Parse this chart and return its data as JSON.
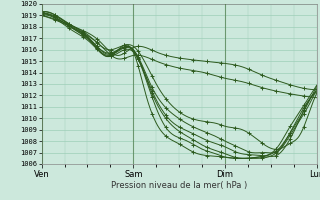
{
  "xlabel": "Pression niveau de la mer( hPa )",
  "bg_color": "#cce8dc",
  "grid_color": "#9ecfb8",
  "line_color": "#2d5a1e",
  "ylim": [
    1006,
    1020
  ],
  "yticks": [
    1006,
    1007,
    1008,
    1009,
    1010,
    1011,
    1012,
    1013,
    1014,
    1015,
    1016,
    1017,
    1018,
    1019,
    1020
  ],
  "day_labels": [
    "Ven",
    "Sam",
    "Dim",
    "Lun"
  ],
  "day_positions": [
    0,
    96,
    192,
    288
  ],
  "total_steps": 288,
  "lines": [
    {
      "x": [
        0,
        20,
        40,
        60,
        80,
        96,
        120,
        150,
        170,
        192,
        210,
        230,
        250,
        270,
        288
      ],
      "y": [
        1019.0,
        1018.5,
        1017.8,
        1016.8,
        1015.5,
        1016.2,
        1015.8,
        1015.2,
        1015.0,
        1014.8,
        1014.5,
        1013.8,
        1013.2,
        1012.7,
        1012.5
      ]
    },
    {
      "x": [
        0,
        20,
        40,
        60,
        80,
        96,
        120,
        150,
        170,
        192,
        210,
        230,
        250,
        270,
        288
      ],
      "y": [
        1019.0,
        1018.4,
        1017.6,
        1016.5,
        1015.2,
        1015.5,
        1015.0,
        1014.3,
        1014.0,
        1013.5,
        1013.2,
        1012.7,
        1012.3,
        1012.0,
        1011.8
      ]
    },
    {
      "x": [
        0,
        15,
        30,
        50,
        70,
        96,
        120,
        145,
        165,
        185,
        192,
        210,
        228,
        248,
        260,
        270,
        280,
        288
      ],
      "y": [
        1019.2,
        1018.9,
        1018.2,
        1017.2,
        1016.0,
        1016.3,
        1013.0,
        1010.5,
        1009.8,
        1009.5,
        1009.3,
        1009.0,
        1008.0,
        1007.3,
        1007.8,
        1008.5,
        1010.5,
        1012.2
      ]
    },
    {
      "x": [
        0,
        15,
        30,
        50,
        70,
        96,
        115,
        140,
        160,
        180,
        192,
        205,
        220,
        235,
        248,
        255,
        265,
        275,
        288
      ],
      "y": [
        1019.1,
        1018.8,
        1018.0,
        1016.9,
        1015.7,
        1016.0,
        1012.8,
        1010.2,
        1009.2,
        1008.5,
        1008.0,
        1007.5,
        1007.0,
        1007.0,
        1007.2,
        1008.0,
        1009.5,
        1011.0,
        1012.3
      ]
    },
    {
      "x": [
        0,
        15,
        30,
        50,
        70,
        96,
        115,
        135,
        155,
        175,
        192,
        205,
        220,
        235,
        247,
        255,
        265,
        275,
        288
      ],
      "y": [
        1019.0,
        1018.7,
        1017.8,
        1016.7,
        1015.4,
        1015.8,
        1012.5,
        1009.8,
        1008.8,
        1008.0,
        1007.5,
        1007.0,
        1006.8,
        1006.7,
        1006.8,
        1007.5,
        1009.0,
        1010.8,
        1012.4
      ]
    },
    {
      "x": [
        0,
        15,
        30,
        50,
        70,
        96,
        115,
        135,
        155,
        172,
        185,
        192,
        202,
        215,
        228,
        240,
        252,
        260,
        270,
        280,
        288
      ],
      "y": [
        1019.3,
        1019.0,
        1018.2,
        1017.0,
        1015.6,
        1016.0,
        1012.3,
        1009.5,
        1008.3,
        1007.5,
        1007.1,
        1006.9,
        1006.6,
        1006.5,
        1006.5,
        1006.7,
        1007.5,
        1008.5,
        1009.8,
        1011.2,
        1012.6
      ]
    },
    {
      "x": [
        0,
        15,
        30,
        50,
        70,
        96,
        115,
        130,
        150,
        168,
        182,
        192,
        202,
        215,
        227,
        238,
        250,
        260,
        270,
        280,
        288
      ],
      "y": [
        1019.2,
        1018.8,
        1018.0,
        1016.8,
        1015.5,
        1015.9,
        1012.0,
        1009.2,
        1008.1,
        1007.3,
        1006.9,
        1006.6,
        1006.5,
        1006.5,
        1006.6,
        1006.8,
        1007.5,
        1008.7,
        1010.0,
        1011.5,
        1012.8
      ]
    },
    {
      "x": [
        0,
        15,
        30,
        50,
        70,
        96,
        110,
        125,
        143,
        160,
        178,
        192,
        202,
        215,
        226,
        237,
        248,
        258,
        268,
        278,
        288
      ],
      "y": [
        1019.3,
        1019.0,
        1018.1,
        1016.9,
        1015.4,
        1015.8,
        1011.8,
        1008.9,
        1007.8,
        1007.0,
        1006.7,
        1006.6,
        1006.5,
        1006.5,
        1006.6,
        1006.8,
        1007.6,
        1009.0,
        1010.3,
        1011.6,
        1012.9
      ]
    }
  ]
}
